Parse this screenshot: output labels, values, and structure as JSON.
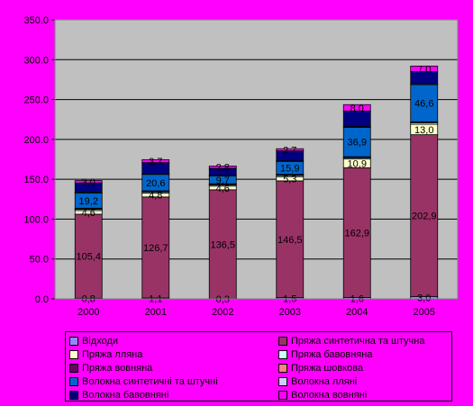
{
  "chart_data": {
    "type": "bar",
    "stacked": true,
    "title": "",
    "xlabel": "",
    "ylabel": "",
    "ylim": [
      0,
      350
    ],
    "ytick_step": 50,
    "ytick_labels": [
      "0.0",
      "50.0",
      "100.0",
      "150.0",
      "200.0",
      "250.0",
      "300.0",
      "350.0"
    ],
    "grid": true,
    "legend_position": "bottom",
    "categories": [
      "2000",
      "2001",
      "2002",
      "2003",
      "2004",
      "2005"
    ],
    "series": [
      {
        "name": "Відходи",
        "color": "#8c8cff",
        "values": [
          0.8,
          1.1,
          0.3,
          1.5,
          1.6,
          3.0
        ],
        "labels": [
          "0,8",
          "1,1",
          "0,3",
          "1,5",
          "1,6",
          "3,0"
        ]
      },
      {
        "name": "Пряжа синтетична та штучна",
        "color": "#993366",
        "values": [
          105.4,
          126.7,
          136.5,
          146.5,
          162.9,
          202.9
        ],
        "labels": [
          "105,4",
          "126,7",
          "136,5",
          "146,5",
          "162,9",
          "202,9"
        ]
      },
      {
        "name": "Пряжа лляна",
        "color": "#ffffcc",
        "values": [
          4.6,
          4.8,
          4.6,
          5.3,
          10.9,
          13.0
        ],
        "labels": [
          "4,6",
          "4,8",
          "4,6",
          "5,3",
          "10,9",
          "13,0"
        ]
      },
      {
        "name": "Пряжа бавовняна",
        "color": "#ccffff",
        "values": [
          1.5,
          1.5,
          1.5,
          1.5,
          1.5,
          1.8
        ],
        "labels": [
          "",
          "",
          "",
          "",
          "",
          ""
        ]
      },
      {
        "name": "Пряжа вовняна",
        "color": "#660066",
        "values": [
          1.0,
          1.0,
          1.0,
          1.0,
          1.0,
          1.0
        ],
        "labels": [
          "",
          "",
          "",
          "",
          "",
          ""
        ]
      },
      {
        "name": "Пряжа шовкова",
        "color": "#ff8080",
        "values": [
          0.4,
          0.4,
          0.4,
          0.4,
          0.4,
          0.4
        ],
        "labels": [
          "",
          "",
          "",
          "",
          "",
          ""
        ]
      },
      {
        "name": "Волокна синтетичні та штучні",
        "color": "#0066cc",
        "values": [
          19.2,
          20.6,
          9.7,
          15.9,
          36.9,
          46.6
        ],
        "labels": [
          "19,2",
          "20,6",
          "9,7",
          "15,9",
          "36,9",
          "46,6"
        ]
      },
      {
        "name": "Волокна лляні",
        "color": "#ccccff",
        "values": [
          1.0,
          1.0,
          1.0,
          1.0,
          1.0,
          1.0
        ],
        "labels": [
          "",
          "",
          "",
          "",
          "",
          ""
        ]
      },
      {
        "name": "Волокна бавовняні",
        "color": "#000080",
        "values": [
          11.5,
          13.8,
          8.8,
          12.5,
          19.4,
          15.3
        ],
        "labels": [
          "",
          "",
          "",
          "",
          "",
          ""
        ]
      },
      {
        "name": "Волокна вовняні",
        "color": "#ff00ff",
        "values": [
          3.0,
          3.7,
          2.8,
          2.7,
          8.0,
          7.0
        ],
        "labels": [
          "3,0",
          "3,7",
          "2,8",
          "2,7",
          "8,0",
          "7,0"
        ]
      }
    ]
  }
}
